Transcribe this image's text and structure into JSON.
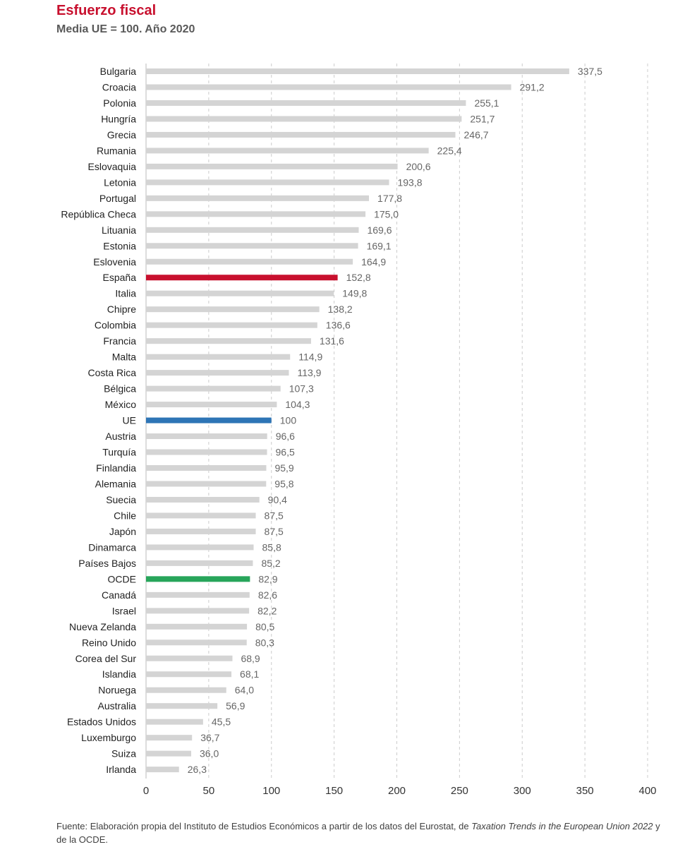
{
  "header": {
    "title": "Esfuerzo fiscal",
    "subtitle": "Media UE = 100. Año 2020"
  },
  "colors": {
    "default_bar": "#d4d4d4",
    "highlight_espana": "#c8102e",
    "highlight_ue": "#2e75b6",
    "highlight_ocde": "#27a55a",
    "grid": "#cccccc",
    "label_text": "#222222",
    "value_text": "#666666"
  },
  "source": {
    "prefix": "Fuente: Elaboración propia del Instituto de Estudios Económicos a partir de los datos del Eurostat, de ",
    "italic": "Taxation Trends in the European Union 2022",
    "suffix": " y de la OCDE."
  },
  "chart_data": {
    "type": "bar",
    "orientation": "horizontal",
    "title": "Esfuerzo fiscal",
    "subtitle": "Media UE = 100. Año 2020",
    "xlim": [
      0,
      400
    ],
    "xticks": [
      0,
      50,
      100,
      150,
      200,
      250,
      300,
      350,
      400
    ],
    "grid": "vertical dashed",
    "categories": [
      "Bulgaria",
      "Croacia",
      "Polonia",
      "Hungría",
      "Grecia",
      "Rumania",
      "Eslovaquia",
      "Letonia",
      "Portugal",
      "República Checa",
      "Lituania",
      "Estonia",
      "Eslovenia",
      "España",
      "Italia",
      "Chipre",
      "Colombia",
      "Francia",
      "Malta",
      "Costa Rica",
      "Bélgica",
      "México",
      "UE",
      "Austria",
      "Turquía",
      "Finlandia",
      "Alemania",
      "Suecia",
      "Chile",
      "Japón",
      "Dinamarca",
      "Países Bajos",
      "OCDE",
      "Canadá",
      "Israel",
      "Nueva Zelanda",
      "Reino Unido",
      "Corea del Sur",
      "Islandia",
      "Noruega",
      "Australia",
      "Estados Unidos",
      "Luxemburgo",
      "Suiza",
      "Irlanda"
    ],
    "values": [
      337.5,
      291.2,
      255.1,
      251.7,
      246.7,
      225.4,
      200.6,
      193.8,
      177.8,
      175.0,
      169.6,
      169.1,
      164.9,
      152.8,
      149.8,
      138.2,
      136.6,
      131.6,
      114.9,
      113.9,
      107.3,
      104.3,
      100,
      96.6,
      96.5,
      95.9,
      95.8,
      90.4,
      87.5,
      87.5,
      85.8,
      85.2,
      82.9,
      82.6,
      82.2,
      80.5,
      80.3,
      68.9,
      68.1,
      64.0,
      56.9,
      45.5,
      36.7,
      36.0,
      26.3
    ],
    "value_labels": [
      "337,5",
      "291,2",
      "255,1",
      "251,7",
      "246,7",
      "225,4",
      "200,6",
      "193,8",
      "177,8",
      "175,0",
      "169,6",
      "169,1",
      "164,9",
      "152,8",
      "149,8",
      "138,2",
      "136,6",
      "131,6",
      "114,9",
      "113,9",
      "107,3",
      "104,3",
      "100",
      "96,6",
      "96,5",
      "95,9",
      "95,8",
      "90,4",
      "87,5",
      "87,5",
      "85,8",
      "85,2",
      "82,9",
      "82,6",
      "82,2",
      "80,5",
      "80,3",
      "68,9",
      "68,1",
      "64,0",
      "56,9",
      "45,5",
      "36,7",
      "36,0",
      "26,3"
    ],
    "highlights": {
      "España": "#c8102e",
      "UE": "#2e75b6",
      "OCDE": "#27a55a"
    }
  }
}
